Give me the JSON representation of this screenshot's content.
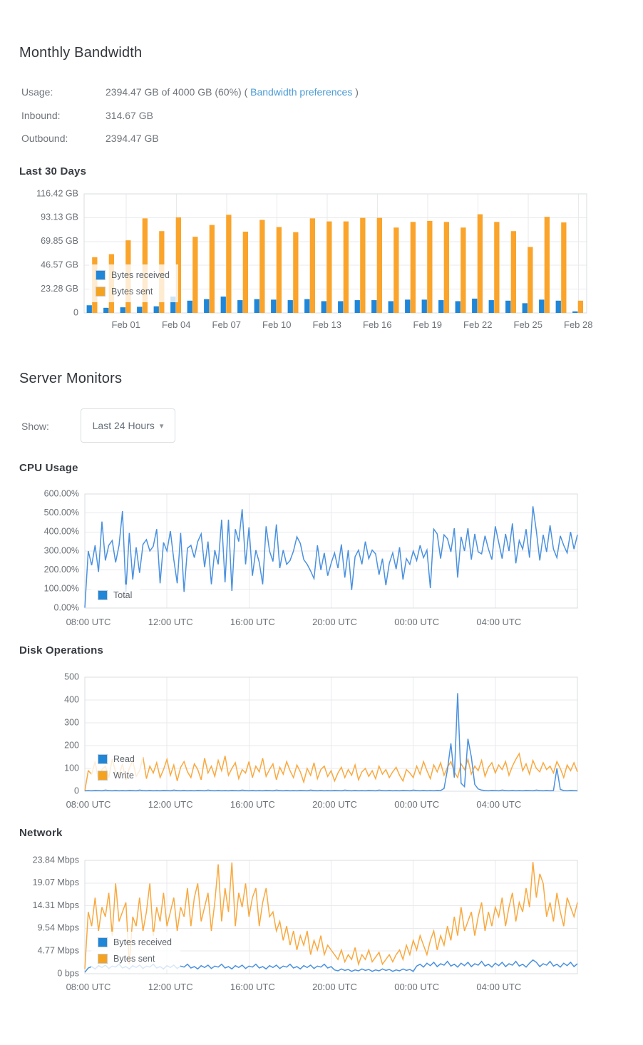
{
  "monthly_bandwidth": {
    "title": "Monthly Bandwidth",
    "usage_label": "Usage:",
    "usage_value": "2394.47 GB of 4000 GB (60%) ( ",
    "usage_link": "Bandwidth preferences",
    "usage_close": " )",
    "inbound_label": "Inbound:",
    "inbound_value": "314.67 GB",
    "outbound_label": "Outbound:",
    "outbound_value": "2394.47 GB"
  },
  "server_monitors": {
    "title": "Server Monitors",
    "show_label": "Show:",
    "show_value": "Last 24 Hours",
    "caret_icon": "▾"
  },
  "colors": {
    "bar_blue": "#1F86D8",
    "bar_orange": "#FAA42B",
    "line_blue": "#4A91E0",
    "line_orange": "#F9A93F",
    "legend_blue": "#1F86D8",
    "legend_orange": "#F5A21F",
    "grid": "#e9eaec",
    "border": "#d9dcdf",
    "axis_text": "#6b7177",
    "link": "#4a9bd6"
  },
  "chart_data": {
    "bandwidth": {
      "type": "bar",
      "title": "Last 30 Days",
      "ymax": 116.42,
      "groups": 30,
      "grid": true,
      "legend_position": "inside-lower-left",
      "y_ticks": [
        {
          "label": "116.42 GB",
          "v": 116.42
        },
        {
          "label": "93.13 GB",
          "v": 93.13
        },
        {
          "label": "69.85 GB",
          "v": 69.85
        },
        {
          "label": "46.57 GB",
          "v": 46.57
        },
        {
          "label": "23.28 GB",
          "v": 23.28
        },
        {
          "label": "0",
          "v": 0
        }
      ],
      "x_ticks": [
        {
          "label": "Feb 01",
          "group": 2
        },
        {
          "label": "Feb 04",
          "group": 5
        },
        {
          "label": "Feb 07",
          "group": 8
        },
        {
          "label": "Feb 10",
          "group": 11
        },
        {
          "label": "Feb 13",
          "group": 14
        },
        {
          "label": "Feb 16",
          "group": 17
        },
        {
          "label": "Feb 19",
          "group": 20
        },
        {
          "label": "Feb 22",
          "group": 23
        },
        {
          "label": "Feb 25",
          "group": 26
        },
        {
          "label": "Feb 28",
          "group": 29
        }
      ],
      "series": [
        {
          "name": "Bytes received",
          "color": "#1F86D8",
          "legend_color": "#1F86D8",
          "values": [
            7.5,
            5,
            5.5,
            6,
            6.5,
            16,
            12,
            13.5,
            16,
            12.5,
            13.5,
            13,
            12.5,
            13.5,
            11.5,
            11.5,
            12.5,
            12.5,
            11.5,
            13,
            13,
            12.5,
            11.5,
            14,
            12.5,
            12,
            9.5,
            13,
            12,
            1.5
          ]
        },
        {
          "name": "Bytes sent",
          "color": "#FAA42B",
          "legend_color": "#F5A21F",
          "values": [
            54.5,
            57.5,
            71,
            92.5,
            80,
            93.5,
            74.5,
            86,
            96,
            79.5,
            91,
            84,
            79,
            92.5,
            89.5,
            89.5,
            93,
            93,
            83.5,
            89,
            90,
            89,
            83.5,
            96.5,
            89,
            80,
            64.5,
            94,
            88.5,
            12
          ]
        }
      ]
    },
    "cpu": {
      "type": "line",
      "title": "CPU Usage",
      "ymax": 600,
      "grid": true,
      "legend_position": "inside-lower-left",
      "y_ticks": [
        {
          "label": "600.00%",
          "v": 600
        },
        {
          "label": "500.00%",
          "v": 500
        },
        {
          "label": "400.00%",
          "v": 400
        },
        {
          "label": "300.00%",
          "v": 300
        },
        {
          "label": "200.00%",
          "v": 200
        },
        {
          "label": "100.00%",
          "v": 100
        },
        {
          "label": "0.00%",
          "v": 0
        }
      ],
      "x_ticks": [
        "08:00 UTC",
        "12:00 UTC",
        "16:00 UTC",
        "20:00 UTC",
        "00:00 UTC",
        "04:00 UTC"
      ],
      "series": [
        {
          "name": "Total",
          "color": "#4A91E0",
          "legend_color": "#1F86D8",
          "values": [
            2,
            300,
            225,
            330,
            190,
            455,
            250,
            330,
            355,
            240,
            330,
            510,
            85,
            395,
            150,
            320,
            185,
            335,
            360,
            300,
            325,
            415,
            130,
            345,
            300,
            405,
            255,
            130,
            395,
            85,
            315,
            330,
            265,
            350,
            390,
            215,
            350,
            125,
            305,
            230,
            465,
            135,
            465,
            90,
            415,
            350,
            520,
            230,
            425,
            170,
            305,
            240,
            125,
            430,
            300,
            245,
            440,
            210,
            305,
            230,
            250,
            300,
            375,
            340,
            255,
            230,
            195,
            155,
            330,
            200,
            290,
            170,
            235,
            290,
            210,
            335,
            160,
            305,
            95,
            270,
            305,
            230,
            350,
            260,
            305,
            285,
            175,
            260,
            120,
            235,
            290,
            205,
            320,
            150,
            260,
            230,
            300,
            250,
            330,
            265,
            305,
            105,
            415,
            390,
            260,
            385,
            365,
            295,
            420,
            160,
            375,
            300,
            420,
            255,
            390,
            295,
            285,
            380,
            310,
            255,
            430,
            345,
            260,
            390,
            300,
            445,
            235,
            355,
            310,
            415,
            265,
            535,
            405,
            250,
            385,
            295,
            435,
            310,
            265,
            380,
            330,
            290,
            400,
            310,
            385
          ]
        }
      ]
    },
    "disk": {
      "type": "line",
      "title": "Disk Operations",
      "ymax": 500,
      "grid": true,
      "legend_position": "inside-lower-left",
      "y_ticks": [
        {
          "label": "500",
          "v": 500
        },
        {
          "label": "400",
          "v": 400
        },
        {
          "label": "300",
          "v": 300
        },
        {
          "label": "200",
          "v": 200
        },
        {
          "label": "100",
          "v": 100
        },
        {
          "label": "0",
          "v": 0
        }
      ],
      "x_ticks": [
        "08:00 UTC",
        "12:00 UTC",
        "16:00 UTC",
        "20:00 UTC",
        "00:00 UTC",
        "04:00 UTC"
      ],
      "series": [
        {
          "name": "Read",
          "color": "#4A91E0",
          "legend_color": "#1F86D8",
          "values": [
            2,
            3,
            2,
            4,
            3,
            2,
            5,
            3,
            2,
            4,
            2,
            3,
            2,
            4,
            3,
            2,
            5,
            3,
            2,
            4,
            2,
            3,
            2,
            4,
            3,
            2,
            5,
            3,
            2,
            4,
            2,
            3,
            2,
            4,
            3,
            2,
            5,
            3,
            2,
            4,
            2,
            3,
            2,
            4,
            3,
            2,
            5,
            3,
            2,
            4,
            2,
            3,
            2,
            4,
            3,
            2,
            5,
            3,
            2,
            4,
            2,
            3,
            2,
            4,
            3,
            2,
            5,
            3,
            2,
            4,
            2,
            3,
            2,
            4,
            3,
            2,
            5,
            3,
            2,
            4,
            2,
            3,
            2,
            4,
            3,
            2,
            5,
            3,
            2,
            4,
            2,
            3,
            2,
            4,
            3,
            2,
            5,
            3,
            2,
            4,
            2,
            3,
            2,
            4,
            3,
            12,
            95,
            210,
            60,
            430,
            35,
            20,
            230,
            150,
            30,
            10,
            5,
            3,
            2,
            4,
            3,
            2,
            5,
            3,
            2,
            4,
            2,
            3,
            2,
            4,
            3,
            2,
            5,
            3,
            2,
            4,
            2,
            3,
            100,
            8,
            3,
            2,
            4,
            3,
            2
          ]
        },
        {
          "name": "Write",
          "color": "#F9A93F",
          "legend_color": "#F5A21F",
          "values": [
            2,
            90,
            75,
            130,
            45,
            95,
            110,
            60,
            140,
            85,
            70,
            120,
            50,
            100,
            135,
            65,
            90,
            150,
            55,
            110,
            80,
            125,
            60,
            95,
            140,
            70,
            115,
            45,
            105,
            130,
            85,
            60,
            120,
            95,
            50,
            145,
            80,
            110,
            65,
            135,
            90,
            155,
            70,
            100,
            125,
            55,
            95,
            80,
            130,
            60,
            110,
            85,
            145,
            65,
            95,
            120,
            50,
            105,
            75,
            130,
            90,
            60,
            115,
            85,
            40,
            100,
            70,
            125,
            55,
            95,
            110,
            65,
            90,
            45,
            80,
            105,
            60,
            95,
            70,
            115,
            50,
            85,
            100,
            65,
            90,
            55,
            110,
            75,
            95,
            60,
            85,
            105,
            70,
            45,
            95,
            80,
            60,
            110,
            75,
            130,
            90,
            55,
            115,
            85,
            125,
            70,
            105,
            130,
            85,
            60,
            120,
            95,
            140,
            75,
            110,
            90,
            135,
            65,
            105,
            125,
            80,
            115,
            95,
            130,
            70,
            110,
            140,
            165,
            90,
            120,
            75,
            135,
            100,
            85,
            125,
            95,
            110,
            80,
            130,
            100,
            60,
            115,
            90,
            125,
            85
          ]
        }
      ]
    },
    "network": {
      "type": "line",
      "title": "Network",
      "ymax": 23.84,
      "grid": true,
      "legend_position": "inside-lower-left",
      "y_ticks": [
        {
          "label": "23.84 Mbps",
          "v": 23.84
        },
        {
          "label": "19.07 Mbps",
          "v": 19.07
        },
        {
          "label": "14.31 Mbps",
          "v": 14.31
        },
        {
          "label": "9.54 Mbps",
          "v": 9.54
        },
        {
          "label": "4.77 Mbps",
          "v": 4.77
        },
        {
          "label": "0 bps",
          "v": 0
        }
      ],
      "x_ticks": [
        "08:00 UTC",
        "12:00 UTC",
        "16:00 UTC",
        "20:00 UTC",
        "00:00 UTC",
        "04:00 UTC"
      ],
      "series": [
        {
          "name": "Bytes received",
          "color": "#4A91E0",
          "legend_color": "#1F86D8",
          "values": [
            0.3,
            1.2,
            1.5,
            1.0,
            1.7,
            1.3,
            1.8,
            1.1,
            1.6,
            1.4,
            2.0,
            1.2,
            1.5,
            1.0,
            1.7,
            1.3,
            1.8,
            1.1,
            1.6,
            1.4,
            2.0,
            1.2,
            1.5,
            1.0,
            1.7,
            1.3,
            1.8,
            1.1,
            1.6,
            1.4,
            2.0,
            1.2,
            1.5,
            1.0,
            1.7,
            1.3,
            1.8,
            1.1,
            1.6,
            1.4,
            2.0,
            1.2,
            1.5,
            1.0,
            1.7,
            1.3,
            1.8,
            1.1,
            1.6,
            1.4,
            2.0,
            1.2,
            1.5,
            1.0,
            1.7,
            1.3,
            1.8,
            1.1,
            1.6,
            1.4,
            2.0,
            1.2,
            1.5,
            1.0,
            1.7,
            1.3,
            1.8,
            1.1,
            1.6,
            1.4,
            2.0,
            1.2,
            1.5,
            0.8,
            0.6,
            1.0,
            0.7,
            0.9,
            0.5,
            0.8,
            0.6,
            1.0,
            0.7,
            0.9,
            0.5,
            0.8,
            0.6,
            1.0,
            0.7,
            0.9,
            0.5,
            0.8,
            0.6,
            1.0,
            0.7,
            0.9,
            0.5,
            1.6,
            2.0,
            1.4,
            2.2,
            1.7,
            2.4,
            1.5,
            2.1,
            1.8,
            2.6,
            1.6,
            2.0,
            1.4,
            2.2,
            1.7,
            2.4,
            1.5,
            2.1,
            1.8,
            2.6,
            1.6,
            2.0,
            1.4,
            2.2,
            1.7,
            2.4,
            1.5,
            2.1,
            1.8,
            2.6,
            1.6,
            2.0,
            1.4,
            2.2,
            2.9,
            2.4,
            1.5,
            2.1,
            1.8,
            2.6,
            1.6,
            2.0,
            1.4,
            2.2,
            1.7,
            2.4,
            1.5,
            2.1
          ]
        },
        {
          "name": "Bytes sent",
          "color": "#F9A93F",
          "legend_color": "#F5A21F",
          "values": [
            1,
            13,
            10,
            16,
            9,
            14,
            12,
            17,
            8,
            19,
            11,
            13,
            15,
            2,
            12,
            10,
            16,
            9,
            13,
            19,
            8,
            14,
            11,
            17,
            10,
            13,
            16,
            9,
            14,
            12,
            18,
            10,
            16,
            19,
            11,
            14,
            17,
            9,
            15,
            23,
            11,
            18,
            13,
            23.4,
            10,
            17,
            14,
            19,
            12,
            16,
            18,
            10,
            15,
            18,
            12,
            13,
            9,
            11,
            7,
            10,
            6,
            9,
            5,
            8,
            6,
            9,
            4,
            7,
            5,
            8,
            4,
            6,
            5,
            4,
            3,
            5,
            2.5,
            4,
            3,
            5.5,
            2,
            4,
            3,
            5,
            2.5,
            3.5,
            4.5,
            2,
            3,
            4,
            2.5,
            4,
            5,
            3,
            6,
            4,
            7,
            5,
            8,
            6,
            4,
            7,
            9,
            5,
            8,
            6,
            10,
            7,
            12,
            8,
            14,
            9,
            11,
            13,
            8,
            12,
            15,
            9,
            13,
            10,
            14,
            12,
            16,
            10,
            14,
            17,
            11,
            15,
            13,
            18,
            14,
            23.5,
            16,
            21,
            19,
            12,
            15,
            11,
            17,
            13,
            10,
            16,
            14,
            12,
            15
          ]
        }
      ]
    }
  }
}
